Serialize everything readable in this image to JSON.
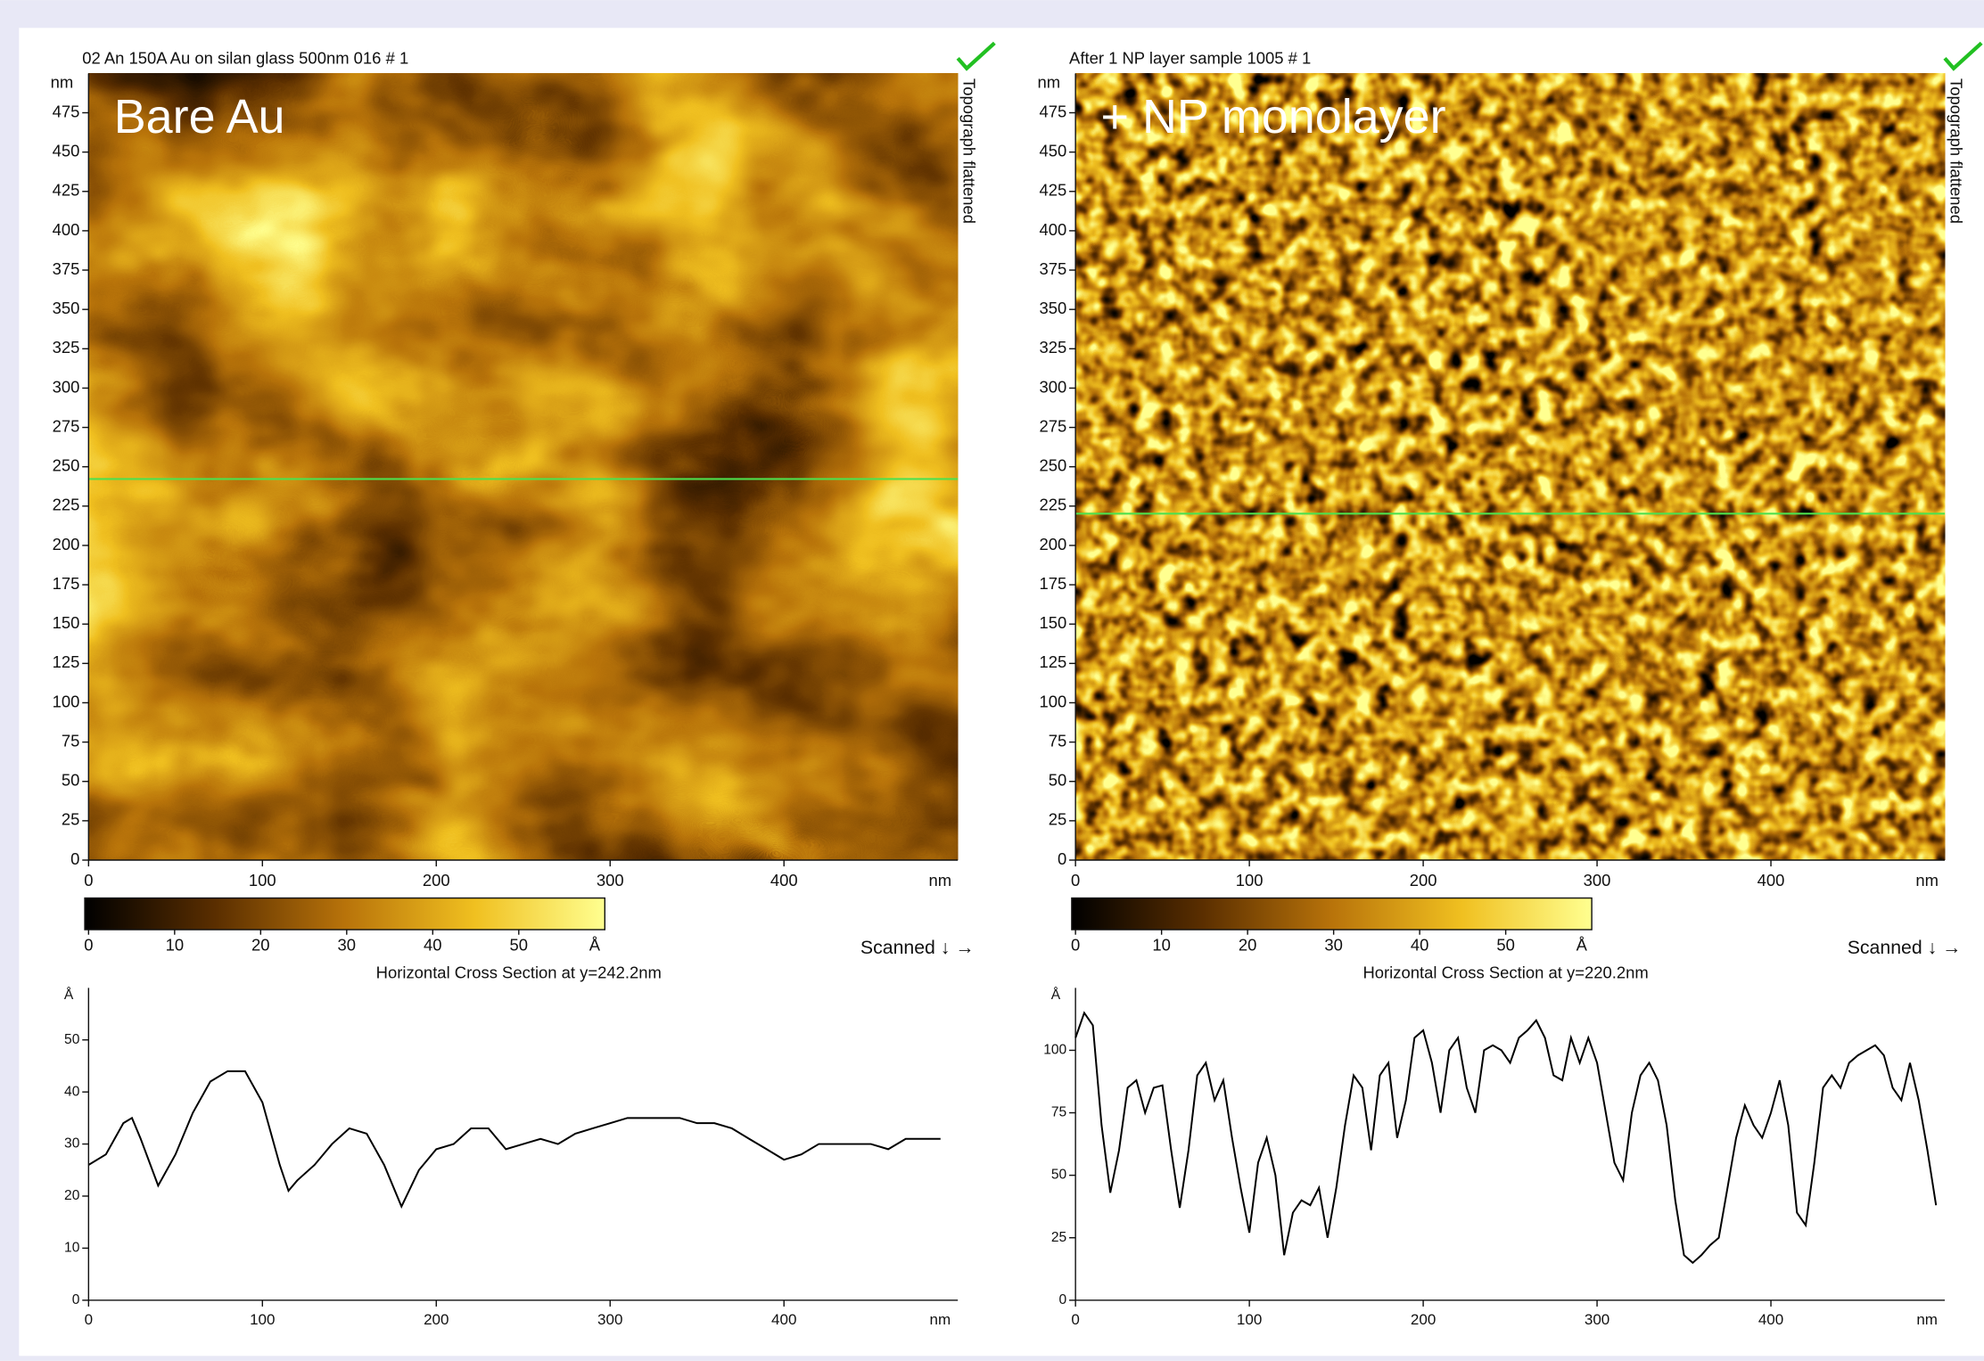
{
  "chart_data": [
    {
      "type": "heatmap",
      "title": "02 An 150A Au on silan glass 500nm 016 # 1",
      "label": "Bare Au",
      "side_label": "Topograph flattened",
      "scan_label": "Scanned ↓ →",
      "x_unit": "nm",
      "y_unit": "nm",
      "xlim": [
        0,
        500
      ],
      "ylim": [
        0,
        500
      ],
      "xticks": [
        0,
        100,
        200,
        300,
        400
      ],
      "yticks": [
        0,
        25,
        50,
        75,
        100,
        125,
        150,
        175,
        200,
        225,
        250,
        275,
        300,
        325,
        350,
        375,
        400,
        425,
        450,
        475
      ],
      "marker_y": 242.2,
      "colormap": [
        "#000000",
        "#5a2e00",
        "#b8730a",
        "#f0c020",
        "#ffff90"
      ],
      "colorbar": {
        "lim": [
          0,
          60
        ],
        "ticks": [
          0,
          10,
          20,
          30,
          40,
          50
        ],
        "unit": "Å"
      }
    },
    {
      "type": "line",
      "title": "Horizontal Cross Section at y=242.2nm",
      "x_unit": "nm",
      "y_unit": "Å",
      "color": "#000000",
      "xlim": [
        0,
        500
      ],
      "ylim": [
        0,
        60
      ],
      "xticks": [
        0,
        100,
        200,
        300,
        400
      ],
      "yticks": [
        0,
        10,
        20,
        30,
        40,
        50
      ],
      "x": [
        0,
        10,
        20,
        25,
        30,
        40,
        50,
        60,
        70,
        80,
        90,
        100,
        110,
        115,
        120,
        130,
        140,
        150,
        160,
        170,
        180,
        190,
        200,
        210,
        220,
        230,
        240,
        250,
        260,
        270,
        280,
        290,
        300,
        310,
        320,
        330,
        340,
        350,
        360,
        370,
        380,
        390,
        400,
        410,
        420,
        430,
        440,
        450,
        460,
        470,
        480,
        490
      ],
      "values": [
        26,
        28,
        34,
        35,
        31,
        22,
        28,
        36,
        42,
        44,
        44,
        38,
        26,
        21,
        23,
        26,
        30,
        33,
        32,
        26,
        18,
        25,
        29,
        30,
        33,
        33,
        29,
        30,
        31,
        30,
        32,
        33,
        34,
        35,
        35,
        35,
        35,
        34,
        34,
        33,
        31,
        29,
        27,
        28,
        30,
        30,
        30,
        30,
        29,
        31,
        31,
        31
      ]
    },
    {
      "type": "heatmap",
      "title": "After 1 NP layer sample 1005 # 1",
      "label": "+ NP monolayer",
      "side_label": "Topograph flattened",
      "scan_label": "Scanned ↓ →",
      "x_unit": "nm",
      "y_unit": "nm",
      "xlim": [
        0,
        500
      ],
      "ylim": [
        0,
        500
      ],
      "xticks": [
        0,
        100,
        200,
        300,
        400
      ],
      "yticks": [
        0,
        25,
        50,
        75,
        100,
        125,
        150,
        175,
        200,
        225,
        250,
        275,
        300,
        325,
        350,
        375,
        400,
        425,
        450,
        475
      ],
      "marker_y": 220.2,
      "colormap": [
        "#000000",
        "#5a2e00",
        "#b8730a",
        "#f0c020",
        "#ffff90"
      ],
      "colorbar": {
        "lim": [
          0,
          60
        ],
        "ticks": [
          0,
          10,
          20,
          30,
          40,
          50
        ],
        "unit": "Å"
      }
    },
    {
      "type": "line",
      "title": "Horizontal Cross Section at y=220.2nm",
      "x_unit": "nm",
      "y_unit": "Å",
      "color": "#000000",
      "xlim": [
        0,
        500
      ],
      "ylim": [
        0,
        125
      ],
      "xticks": [
        0,
        100,
        200,
        300,
        400
      ],
      "yticks": [
        0,
        25,
        50,
        75,
        100
      ],
      "x": [
        0,
        5,
        10,
        15,
        20,
        25,
        30,
        35,
        40,
        45,
        50,
        55,
        60,
        65,
        70,
        75,
        80,
        85,
        90,
        95,
        100,
        105,
        110,
        115,
        120,
        125,
        130,
        135,
        140,
        145,
        150,
        155,
        160,
        165,
        170,
        175,
        180,
        185,
        190,
        195,
        200,
        205,
        210,
        215,
        220,
        225,
        230,
        235,
        240,
        245,
        250,
        255,
        260,
        265,
        270,
        275,
        280,
        285,
        290,
        295,
        300,
        305,
        310,
        315,
        320,
        325,
        330,
        335,
        340,
        345,
        350,
        355,
        360,
        365,
        370,
        375,
        380,
        385,
        390,
        395,
        400,
        405,
        410,
        415,
        420,
        425,
        430,
        435,
        440,
        445,
        450,
        455,
        460,
        465,
        470,
        475,
        480,
        485,
        490,
        495
      ],
      "values": [
        105,
        115,
        110,
        70,
        43,
        60,
        85,
        88,
        75,
        85,
        86,
        60,
        37,
        60,
        90,
        95,
        80,
        88,
        65,
        45,
        27,
        55,
        65,
        50,
        18,
        35,
        40,
        38,
        45,
        25,
        45,
        70,
        90,
        85,
        60,
        90,
        95,
        65,
        80,
        105,
        108,
        95,
        75,
        100,
        105,
        85,
        75,
        100,
        102,
        100,
        95,
        105,
        108,
        112,
        105,
        90,
        88,
        105,
        95,
        105,
        95,
        75,
        55,
        48,
        75,
        90,
        95,
        88,
        70,
        40,
        18,
        15,
        18,
        22,
        25,
        45,
        65,
        78,
        70,
        65,
        75,
        88,
        70,
        35,
        30,
        55,
        85,
        90,
        85,
        95,
        98,
        100,
        102,
        98,
        85,
        80,
        95,
        80,
        60,
        38
      ]
    }
  ]
}
